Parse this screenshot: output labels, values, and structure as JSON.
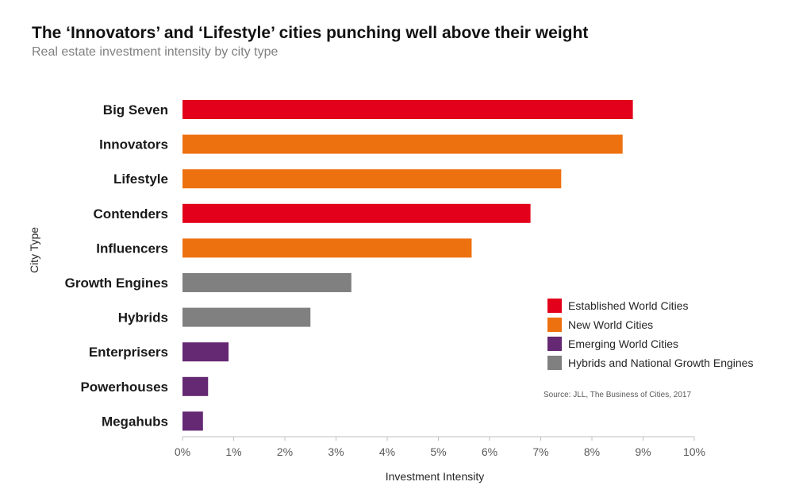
{
  "chart_data": {
    "type": "bar",
    "orientation": "horizontal",
    "title": "The ‘Innovators’ and ‘Lifestyle’ cities punching well above their weight",
    "subtitle": "Real estate investment intensity by city type",
    "xlabel": "Investment Intensity",
    "ylabel": "City Type",
    "xlim": [
      0,
      10
    ],
    "x_ticks": [
      "0%",
      "1%",
      "2%",
      "3%",
      "4%",
      "5%",
      "6%",
      "7%",
      "8%",
      "9%",
      "10%"
    ],
    "grid": false,
    "legend_position": "right",
    "categories": [
      "Big Seven",
      "Innovators",
      "Lifestyle",
      "Contenders",
      "Influencers",
      "Growth Engines",
      "Hybrids",
      "Enterprisers",
      "Powerhouses",
      "Megahubs"
    ],
    "values": [
      8.8,
      8.6,
      7.4,
      6.8,
      5.65,
      3.3,
      2.5,
      0.9,
      0.5,
      0.4
    ],
    "groups": [
      "Established World Cities",
      "New World Cities",
      "New World Cities",
      "Established World Cities",
      "New World Cities",
      "Hybrids and National Growth Engines",
      "Hybrids and National Growth Engines",
      "Emerging World Cities",
      "Emerging World Cities",
      "Emerging World Cities"
    ],
    "legend": [
      {
        "name": "Established World Cities",
        "color": "#e2001a"
      },
      {
        "name": "New World Cities",
        "color": "#ee7110"
      },
      {
        "name": "Emerging World Cities",
        "color": "#652873"
      },
      {
        "name": "Hybrids and National Growth Engines",
        "color": "#808080"
      }
    ],
    "source": "Source: JLL, The Business of Cities, 2017"
  }
}
